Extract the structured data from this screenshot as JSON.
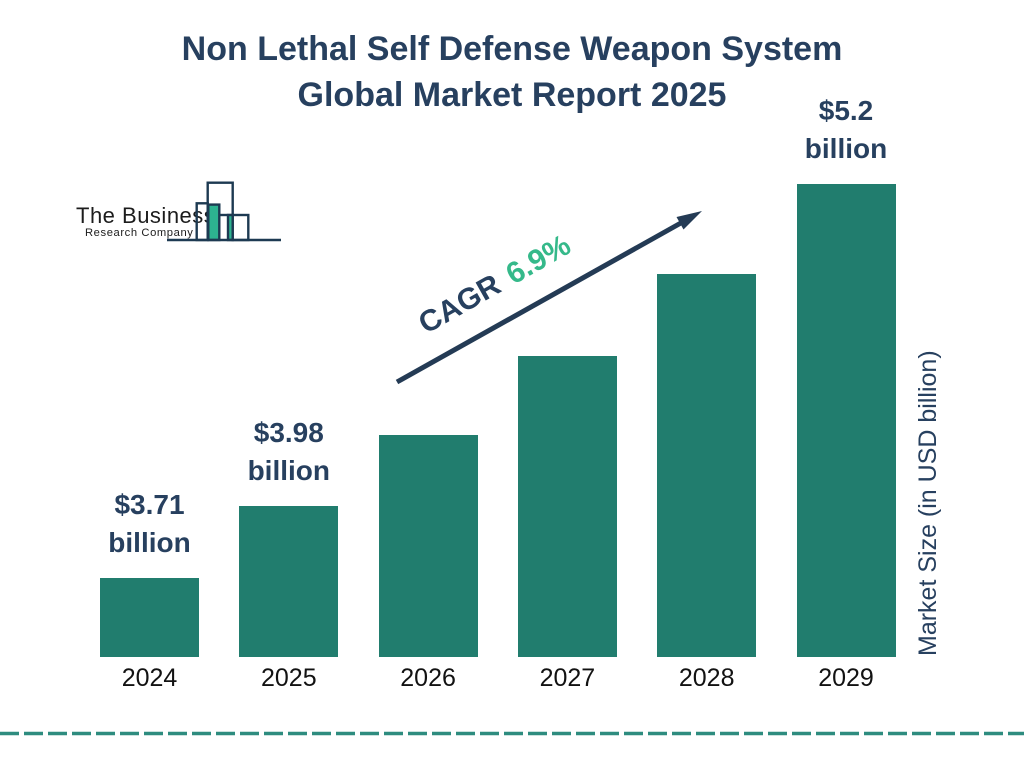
{
  "title": {
    "line1": "Non Lethal Self Defense Weapon System",
    "line2": "Global Market Report 2025"
  },
  "logo": {
    "line1": "The Business",
    "line2": "Research Company"
  },
  "annotation": {
    "cagr_label": "CAGR",
    "cagr_value": "6.9%"
  },
  "colors": {
    "navy": "#27405f",
    "bar_teal": "#217d6e",
    "accent_green": "#35b98a",
    "divider_teal": "#2e8c7f",
    "arrow_navy": "#243b55",
    "logo_teal": "#2db390",
    "logo_outline": "#1d3a52",
    "year_label": "#121212"
  },
  "chart_data": {
    "type": "bar",
    "title": "Non Lethal Self Defense Weapon System Global Market Report 2025",
    "categories": [
      "2024",
      "2025",
      "2026",
      "2027",
      "2028",
      "2029"
    ],
    "values": [
      3.71,
      3.98,
      4.25,
      4.55,
      4.86,
      5.2
    ],
    "labeled_values": {
      "2024": "$3.71 billion",
      "2025": "$3.98 billion",
      "2029": "$5.2 billion"
    },
    "value_labels": [
      {
        "bar_index": 0,
        "line1": "$3.71",
        "line2": "billion"
      },
      {
        "bar_index": 1,
        "line1": "$3.98",
        "line2": "billion"
      },
      {
        "bar_index": 5,
        "line1": "$5.2",
        "line2": "billion"
      }
    ],
    "cagr": "6.9%",
    "xlabel": "",
    "ylabel": "Market Size (in USD billion)",
    "ylim": [
      3.41,
      5.2
    ],
    "grid": false,
    "legend": false,
    "bar_color": "#217d6e"
  }
}
